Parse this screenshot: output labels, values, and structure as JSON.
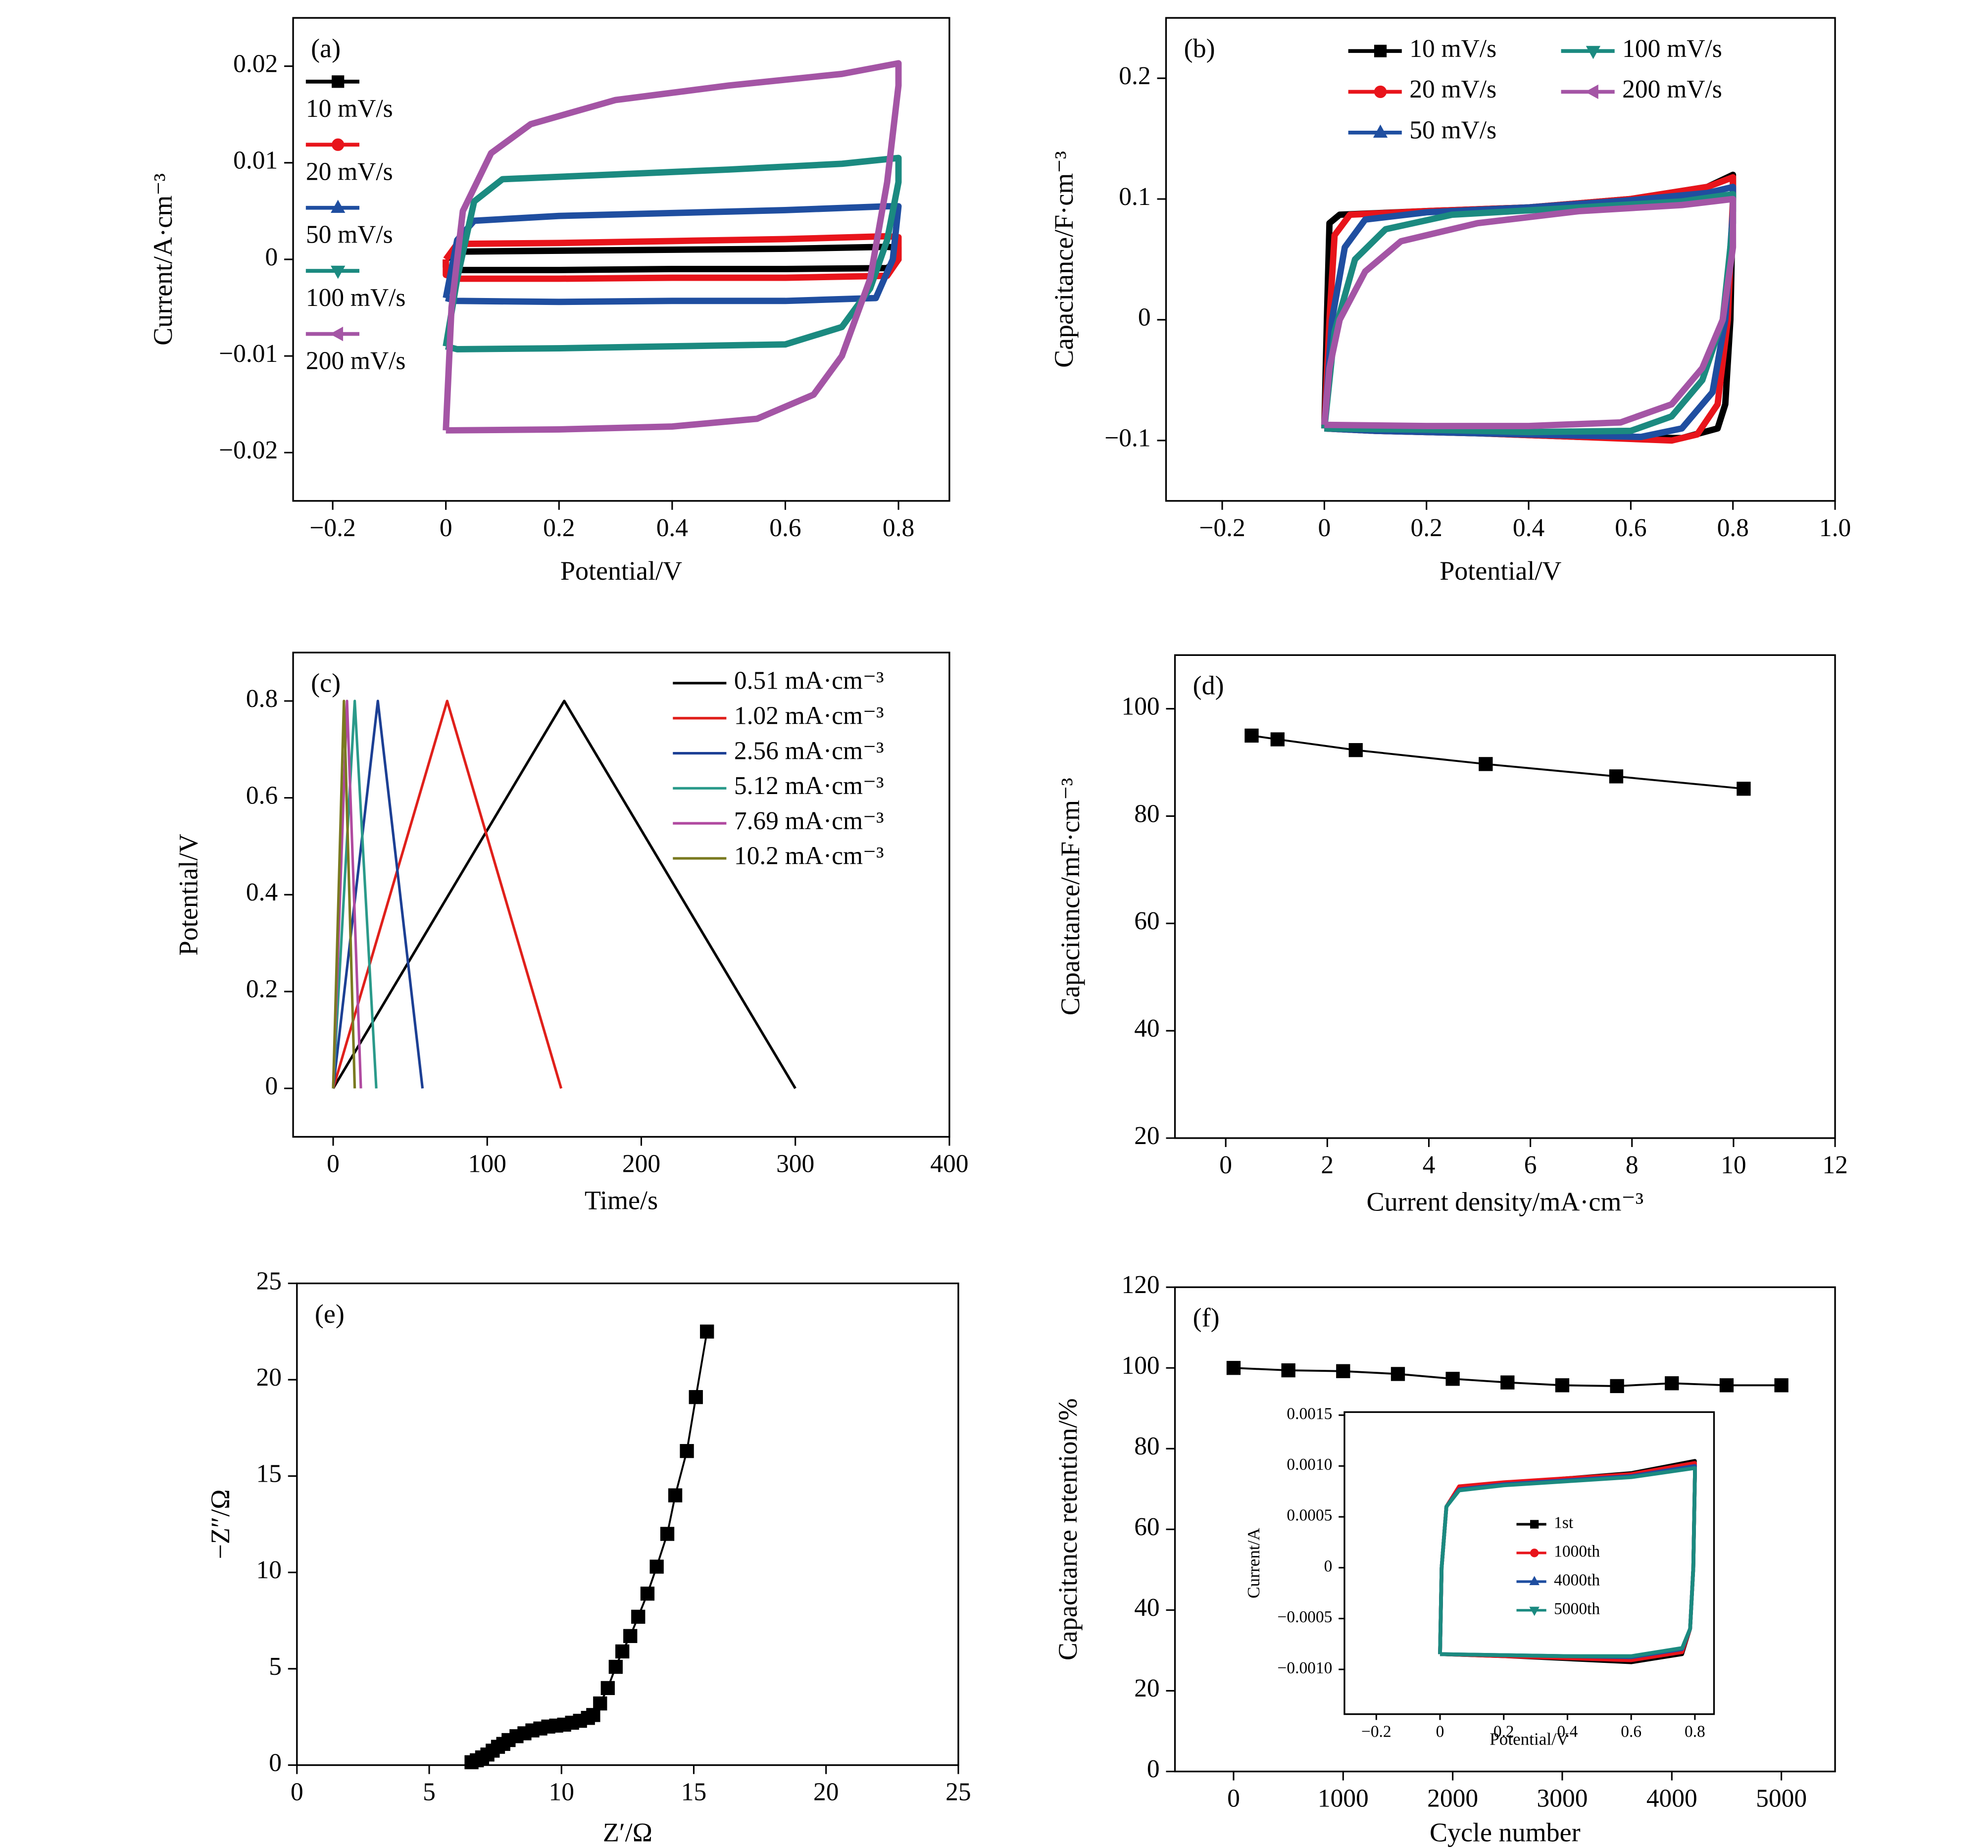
{
  "chart_data": [
    {
      "type": "line",
      "label": "(a)",
      "x_label": "Potential/V",
      "y_label": "Current/A·cm⁻³",
      "xlim": [
        -0.27,
        0.89
      ],
      "ylim": [
        -0.025,
        0.025
      ],
      "xticks": [
        {
          "value": -0.2,
          "label": "−0.2"
        },
        0,
        0.2,
        0.4,
        0.6,
        0.8
      ],
      "yticks": [
        {
          "value": -0.02,
          "label": "−0.02"
        },
        {
          "value": -0.01,
          "label": "−0.01"
        },
        0,
        0.01,
        0.02
      ],
      "legend": "upper left",
      "series": [
        {
          "name": "10 mV/s",
          "color": "#000000",
          "marker": "square",
          "x": [
            0,
            0.02,
            0.2,
            0.4,
            0.6,
            0.78,
            0.8,
            0.8,
            0.78,
            0.6,
            0.4,
            0.2,
            0.02,
            0,
            0
          ],
          "values": [
            0,
            0.0008,
            0.0009,
            0.001,
            0.0011,
            0.0013,
            0.0012,
            0,
            -0.0009,
            -0.001,
            -0.001,
            -0.0011,
            -0.0011,
            -0.0008,
            0
          ]
        },
        {
          "name": "20 mV/s",
          "color": "#e8141b",
          "marker": "circle",
          "x": [
            0,
            0.02,
            0.2,
            0.4,
            0.6,
            0.78,
            0.8,
            0.8,
            0.78,
            0.6,
            0.4,
            0.2,
            0.02,
            0,
            0
          ],
          "values": [
            0,
            0.0016,
            0.0017,
            0.0019,
            0.0021,
            0.0024,
            0.0023,
            0,
            -0.0017,
            -0.0019,
            -0.0019,
            -0.002,
            -0.002,
            -0.0016,
            0
          ]
        },
        {
          "name": "50 mV/s",
          "color": "#1f4ea0",
          "marker": "triangle-up",
          "x": [
            0,
            0.02,
            0.05,
            0.2,
            0.4,
            0.6,
            0.78,
            0.8,
            0.79,
            0.76,
            0.6,
            0.4,
            0.2,
            0.02,
            0
          ],
          "values": [
            -0.004,
            0.002,
            0.004,
            0.0045,
            0.0048,
            0.0051,
            0.0055,
            0.0055,
            0,
            -0.004,
            -0.0043,
            -0.0043,
            -0.0044,
            -0.0043,
            -0.004
          ]
        },
        {
          "name": "100 mV/s",
          "color": "#1b8a80",
          "marker": "triangle-down",
          "x": [
            0,
            0.02,
            0.05,
            0.1,
            0.3,
            0.5,
            0.7,
            0.8,
            0.8,
            0.78,
            0.75,
            0.7,
            0.6,
            0.4,
            0.2,
            0.02,
            0
          ],
          "values": [
            -0.009,
            -0.002,
            0.006,
            0.0083,
            0.0088,
            0.0093,
            0.0099,
            0.0105,
            0.008,
            0.002,
            -0.003,
            -0.007,
            -0.0088,
            -0.009,
            -0.0092,
            -0.0093,
            -0.009
          ]
        },
        {
          "name": "200 mV/s",
          "color": "#a455a5",
          "marker": "triangle-left",
          "x": [
            0,
            0.01,
            0.03,
            0.08,
            0.15,
            0.3,
            0.5,
            0.7,
            0.8,
            0.8,
            0.78,
            0.75,
            0.7,
            0.65,
            0.55,
            0.4,
            0.2,
            0
          ],
          "values": [
            -0.0177,
            -0.005,
            0.005,
            0.011,
            0.014,
            0.0165,
            0.018,
            0.0192,
            0.0203,
            0.018,
            0.008,
            -0.002,
            -0.01,
            -0.014,
            -0.0165,
            -0.0173,
            -0.0176,
            -0.0177
          ]
        }
      ]
    },
    {
      "type": "line",
      "label": "(b)",
      "x_label": "Potential/V",
      "y_label": "Capacitance/F·cm⁻³",
      "xlim": [
        -0.31,
        1.0
      ],
      "ylim": [
        -0.15,
        0.25
      ],
      "xticks": [
        {
          "value": -0.2,
          "label": "−0.2"
        },
        0,
        0.2,
        0.4,
        0.6,
        0.8,
        {
          "value": 1.0,
          "label": "1.0"
        }
      ],
      "yticks": [
        {
          "value": -0.1,
          "label": "−0.1"
        },
        0,
        0.1,
        0.2
      ],
      "legend": "upper right",
      "legend_columns": 2,
      "series": [
        {
          "name": "10 mV/s",
          "color": "#000000",
          "marker": "square",
          "x": [
            0,
            0.005,
            0.01,
            0.03,
            0.2,
            0.4,
            0.6,
            0.75,
            0.8,
            0.8,
            0.795,
            0.785,
            0.77,
            0.7,
            0.5,
            0.3,
            0.1,
            0
          ],
          "values": [
            -0.09,
            0,
            0.08,
            0.087,
            0.09,
            0.093,
            0.1,
            0.11,
            0.12,
            0.1,
            0,
            -0.07,
            -0.09,
            -0.098,
            -0.097,
            -0.094,
            -0.092,
            -0.09
          ]
        },
        {
          "name": "20 mV/s",
          "color": "#e8141b",
          "marker": "circle",
          "x": [
            0,
            0.01,
            0.02,
            0.05,
            0.2,
            0.4,
            0.6,
            0.75,
            0.8,
            0.8,
            0.79,
            0.77,
            0.73,
            0.68,
            0.5,
            0.3,
            0.1,
            0
          ],
          "values": [
            -0.09,
            0,
            0.07,
            0.087,
            0.09,
            0.093,
            0.1,
            0.11,
            0.118,
            0.1,
            0,
            -0.07,
            -0.095,
            -0.1,
            -0.097,
            -0.094,
            -0.092,
            -0.09
          ]
        },
        {
          "name": "50 mV/s",
          "color": "#1f4ea0",
          "marker": "triangle-up",
          "x": [
            0,
            0.015,
            0.04,
            0.08,
            0.2,
            0.4,
            0.6,
            0.75,
            0.8,
            0.8,
            0.785,
            0.76,
            0.7,
            0.62,
            0.5,
            0.3,
            0.1,
            0
          ],
          "values": [
            -0.09,
            0,
            0.06,
            0.083,
            0.089,
            0.093,
            0.099,
            0.105,
            0.11,
            0.09,
            0,
            -0.06,
            -0.09,
            -0.097,
            -0.096,
            -0.094,
            -0.092,
            -0.09
          ]
        },
        {
          "name": "100 mV/s",
          "color": "#1b8a80",
          "marker": "triangle-down",
          "x": [
            0,
            0.02,
            0.06,
            0.12,
            0.25,
            0.5,
            0.7,
            0.8,
            0.8,
            0.78,
            0.74,
            0.68,
            0.6,
            0.4,
            0.2,
            0
          ],
          "values": [
            -0.09,
            -0.01,
            0.05,
            0.075,
            0.087,
            0.093,
            0.098,
            0.104,
            0.08,
            0,
            -0.05,
            -0.08,
            -0.092,
            -0.093,
            -0.091,
            -0.09
          ]
        },
        {
          "name": "200 mV/s",
          "color": "#a455a5",
          "marker": "triangle-left",
          "x": [
            0,
            0.01,
            0.03,
            0.08,
            0.15,
            0.3,
            0.5,
            0.7,
            0.8,
            0.8,
            0.78,
            0.74,
            0.68,
            0.58,
            0.4,
            0.2,
            0
          ],
          "values": [
            -0.087,
            -0.04,
            0,
            0.04,
            0.065,
            0.08,
            0.09,
            0.095,
            0.1,
            0.06,
            0,
            -0.04,
            -0.07,
            -0.085,
            -0.088,
            -0.088,
            -0.087
          ]
        }
      ]
    },
    {
      "type": "line",
      "label": "(c)",
      "x_label": "Time/s",
      "y_label": "Potential/V",
      "xlim": [
        -26,
        400
      ],
      "ylim": [
        -0.1,
        0.9
      ],
      "xticks": [
        0,
        100,
        200,
        300,
        400
      ],
      "yticks": [
        0,
        0.2,
        0.4,
        0.6,
        0.8
      ],
      "legend": "upper right",
      "series": [
        {
          "name": "0.51 mA·cm⁻³",
          "color": "#000000",
          "x": [
            0,
            150,
            300
          ],
          "values": [
            0,
            0.8,
            0
          ]
        },
        {
          "name": "1.02 mA·cm⁻³",
          "color": "#e0201b",
          "x": [
            0,
            74,
            148
          ],
          "values": [
            0,
            0.8,
            0
          ]
        },
        {
          "name": "2.56 mA·cm⁻³",
          "color": "#1c3f94",
          "x": [
            0,
            29,
            58
          ],
          "values": [
            0,
            0.8,
            0
          ]
        },
        {
          "name": "5.12 mA·cm⁻³",
          "color": "#2a9a8a",
          "x": [
            0,
            14,
            28
          ],
          "values": [
            0,
            0.8,
            0
          ]
        },
        {
          "name": "7.69 mA·cm⁻³",
          "color": "#b04aa0",
          "x": [
            0,
            9,
            18
          ],
          "values": [
            0,
            0.8,
            0
          ]
        },
        {
          "name": "10.2 mA·cm⁻³",
          "color": "#7a7a20",
          "x": [
            0,
            7,
            14
          ],
          "values": [
            0,
            0.8,
            0
          ]
        }
      ]
    },
    {
      "type": "line",
      "label": "(d)",
      "x_label": "Current density/mA·cm⁻³",
      "y_label": "Capacitance/mF·cm⁻³",
      "xlim": [
        -1,
        12
      ],
      "ylim": [
        20,
        110
      ],
      "xticks": [
        0,
        2,
        4,
        6,
        8,
        10,
        12
      ],
      "yticks": [
        20,
        40,
        60,
        80,
        100
      ],
      "color": "#000000",
      "marker": "square",
      "x": [
        0.51,
        1.02,
        2.56,
        5.12,
        7.69,
        10.2
      ],
      "values": [
        95,
        94.3,
        92.3,
        89.7,
        87.4,
        85.1
      ]
    },
    {
      "type": "line",
      "label": "(e)",
      "x_label": "Z′/Ω",
      "y_label": "−Z″/Ω",
      "xlim": [
        0,
        25
      ],
      "ylim": [
        0,
        25
      ],
      "xticks": [
        0,
        5,
        10,
        15,
        20,
        25
      ],
      "yticks": [
        0,
        5,
        10,
        15,
        20,
        25
      ],
      "color": "#000000",
      "marker": "square",
      "x": [
        6.6,
        6.8,
        7.0,
        7.2,
        7.4,
        7.6,
        7.8,
        8.0,
        8.3,
        8.6,
        8.9,
        9.2,
        9.5,
        9.8,
        10.1,
        10.4,
        10.7,
        11.0,
        11.2,
        11.46,
        11.75,
        12.05,
        12.3,
        12.6,
        12.9,
        13.25,
        13.6,
        14.0,
        14.3,
        14.74,
        15.08,
        15.5
      ],
      "values": [
        0.15,
        0.25,
        0.4,
        0.55,
        0.75,
        0.95,
        1.1,
        1.3,
        1.5,
        1.65,
        1.8,
        1.9,
        2.0,
        2.05,
        2.1,
        2.2,
        2.3,
        2.45,
        2.6,
        3.2,
        4.0,
        5.1,
        5.9,
        6.7,
        7.7,
        8.9,
        10.3,
        12.0,
        14.0,
        16.3,
        19.1,
        22.5
      ]
    },
    {
      "type": "line",
      "label": "(f)",
      "x_label": "Cycle number",
      "y_label": "Capacitance retention/%",
      "xlim": [
        -535,
        5490
      ],
      "ylim": [
        0,
        120
      ],
      "xticks": [
        0,
        1000,
        2000,
        3000,
        4000,
        5000
      ],
      "yticks": [
        0,
        20,
        40,
        60,
        80,
        100,
        120
      ],
      "color": "#000000",
      "marker": "square",
      "x": [
        0,
        500,
        1000,
        1500,
        2000,
        2500,
        3000,
        3500,
        4000,
        4500,
        5000
      ],
      "values": [
        100,
        99.4,
        99.2,
        98.5,
        97.3,
        96.4,
        95.7,
        95.5,
        96.2,
        95.7,
        95.7
      ]
    },
    {
      "type": "line",
      "x_label": "Potential/V",
      "y_label": "Current/A",
      "xlim": [
        -0.3,
        0.86
      ],
      "ylim": [
        -0.00144,
        0.00153
      ],
      "xticks": [
        {
          "value": -0.2,
          "label": "−0.2"
        },
        0,
        0.2,
        0.4,
        0.6,
        0.8
      ],
      "yticks": [
        {
          "value": -0.001,
          "label": "−0.0010"
        },
        {
          "value": -0.0005,
          "label": "−0.0005"
        },
        0,
        0.0005,
        {
          "value": 0.001,
          "label": "0.0010"
        },
        0.0015
      ],
      "legend": "center right",
      "series": [
        {
          "name": "1st",
          "color": "#000000",
          "marker": "square",
          "x": [
            0,
            0.005,
            0.02,
            0.06,
            0.2,
            0.4,
            0.6,
            0.8,
            0.8,
            0.795,
            0.785,
            0.76,
            0.6,
            0.4,
            0.2,
            0
          ],
          "values": [
            -0.00085,
            0,
            0.0006,
            0.00078,
            0.00083,
            0.00088,
            0.00093,
            0.00105,
            0.0009,
            0,
            -0.0006,
            -0.00085,
            -0.00093,
            -0.0009,
            -0.00087,
            -0.00085
          ]
        },
        {
          "name": "1000th",
          "color": "#e8141b",
          "marker": "circle",
          "x": [
            0,
            0.005,
            0.02,
            0.06,
            0.2,
            0.4,
            0.6,
            0.8,
            0.8,
            0.795,
            0.785,
            0.76,
            0.6,
            0.4,
            0.2,
            0
          ],
          "values": [
            -0.00085,
            0,
            0.0006,
            0.0008,
            0.00084,
            0.00088,
            0.00092,
            0.00103,
            0.0009,
            0,
            -0.0006,
            -0.00083,
            -0.00091,
            -0.00089,
            -0.00087,
            -0.00085
          ]
        },
        {
          "name": "4000th",
          "color": "#1f4ea0",
          "marker": "triangle-up",
          "x": [
            0,
            0.005,
            0.02,
            0.06,
            0.2,
            0.4,
            0.6,
            0.8,
            0.8,
            0.795,
            0.785,
            0.76,
            0.6,
            0.4,
            0.2,
            0
          ],
          "values": [
            -0.00085,
            0,
            0.0006,
            0.00077,
            0.00082,
            0.00086,
            0.0009,
            0.001,
            0.0009,
            0,
            -0.0006,
            -0.0008,
            -0.00088,
            -0.00087,
            -0.00086,
            -0.00085
          ]
        },
        {
          "name": "5000th",
          "color": "#1b8a80",
          "marker": "triangle-down",
          "x": [
            0,
            0.005,
            0.02,
            0.06,
            0.2,
            0.4,
            0.6,
            0.8,
            0.8,
            0.795,
            0.785,
            0.76,
            0.6,
            0.4,
            0.2,
            0
          ],
          "values": [
            -0.00085,
            0,
            0.0006,
            0.00076,
            0.00081,
            0.00085,
            0.00089,
            0.00098,
            0.0009,
            0,
            -0.0006,
            -0.00079,
            -0.00087,
            -0.00087,
            -0.00086,
            -0.00085
          ]
        }
      ]
    }
  ]
}
